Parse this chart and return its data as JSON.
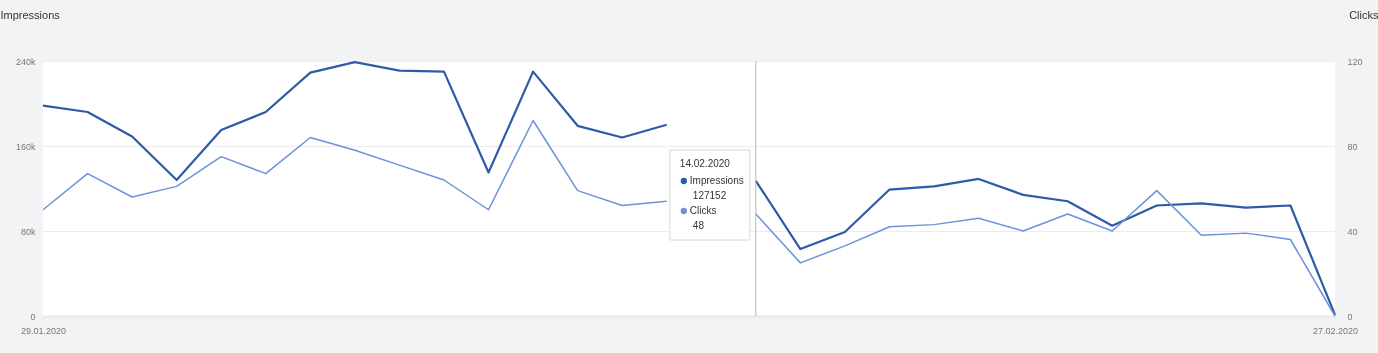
{
  "chart_data": {
    "type": "line",
    "x": [
      "2020-01-29",
      "2020-01-30",
      "2020-01-31",
      "2020-02-01",
      "2020-02-02",
      "2020-02-03",
      "2020-02-04",
      "2020-02-05",
      "2020-02-06",
      "2020-02-07",
      "2020-02-08",
      "2020-02-09",
      "2020-02-10",
      "2020-02-11",
      "2020-02-12",
      "2020-02-13",
      "2020-02-14",
      "2020-02-15",
      "2020-02-16",
      "2020-02-17",
      "2020-02-18",
      "2020-02-19",
      "2020-02-20",
      "2020-02-21",
      "2020-02-22",
      "2020-02-23",
      "2020-02-24",
      "2020-02-25",
      "2020-02-26",
      "2020-02-27"
    ],
    "series": [
      {
        "name": "Impressions",
        "color": "#2f5aa8",
        "values": [
          198000,
          192000,
          169000,
          128000,
          175000,
          192000,
          229000,
          239000,
          231000,
          230000,
          135000,
          230000,
          179000,
          168000,
          180000,
          null,
          127152,
          63000,
          79000,
          119000,
          122000,
          129000,
          114000,
          108000,
          85000,
          104000,
          106000,
          102000,
          104000,
          1000
        ]
      },
      {
        "name": "Clicks",
        "color": "#6a93d8",
        "axis": "y2",
        "values": [
          50,
          67,
          56,
          61,
          75,
          67,
          84,
          78,
          71,
          64,
          50,
          92,
          59,
          52,
          54,
          null,
          48,
          25,
          33,
          42,
          43,
          46,
          40,
          48,
          40,
          59,
          38,
          39,
          36,
          0
        ]
      }
    ],
    "ylabel": "Impressions",
    "y2label": "Clicks",
    "xlim": [
      "2020-01-29",
      "2020-02-27"
    ],
    "xticks": [
      {
        "value": "2020-01-29",
        "label": "29.01.2020"
      },
      {
        "value": "2020-02-27",
        "label": "27.02.2020"
      }
    ],
    "ylim": [
      0,
      240000
    ],
    "yticks": [
      0,
      {
        "value": 80000,
        "label": "80k"
      },
      {
        "value": 160000,
        "label": "160k"
      },
      {
        "value": 240000,
        "label": "240k"
      }
    ],
    "y2lim": [
      0,
      120
    ],
    "y2ticks": [
      0,
      40,
      80,
      120
    ],
    "grid": "y",
    "legend": "bottom right",
    "marker": "none",
    "line_style": "solid",
    "ref_lines": [
      {
        "axis": "x",
        "value": "2020-02-14",
        "color": "#b8b8b8"
      }
    ],
    "annotations": [
      "14.02.2020",
      "127152",
      "48"
    ]
  }
}
